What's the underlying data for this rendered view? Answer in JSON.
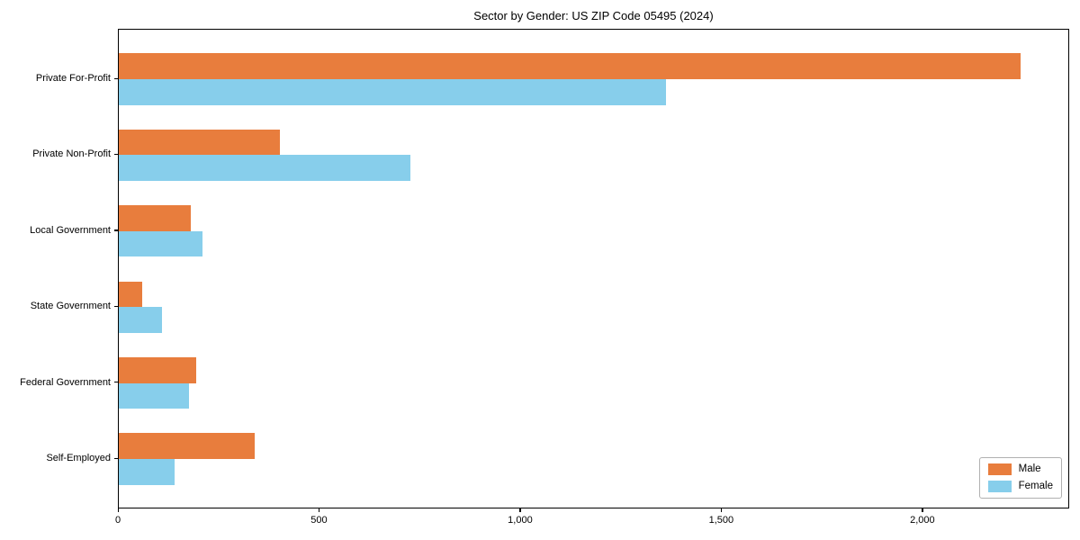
{
  "chart_data": {
    "type": "bar",
    "orientation": "horizontal",
    "title": "Sector by Gender: US ZIP Code 05495 (2024)",
    "categories": [
      "Private For-Profit",
      "Private Non-Profit",
      "Local Government",
      "State Government",
      "Federal Government",
      "Self-Employed"
    ],
    "series": [
      {
        "name": "Male",
        "color": "#e87d3d",
        "values": [
          2248,
          402,
          179,
          58,
          194,
          339
        ]
      },
      {
        "name": "Female",
        "color": "#87ceeb",
        "values": [
          1364,
          728,
          209,
          108,
          174,
          138
        ]
      }
    ],
    "xlabel": "",
    "ylabel": "",
    "xlim": [
      0,
      2365
    ],
    "xticks": [
      0,
      500,
      1000,
      1500,
      2000
    ],
    "xtick_labels": [
      "0",
      "500",
      "1,000",
      "1,500",
      "2,000"
    ],
    "legend_position": "lower-right",
    "grid": false,
    "axis_color": "#000000",
    "background_color": "#ffffff"
  }
}
